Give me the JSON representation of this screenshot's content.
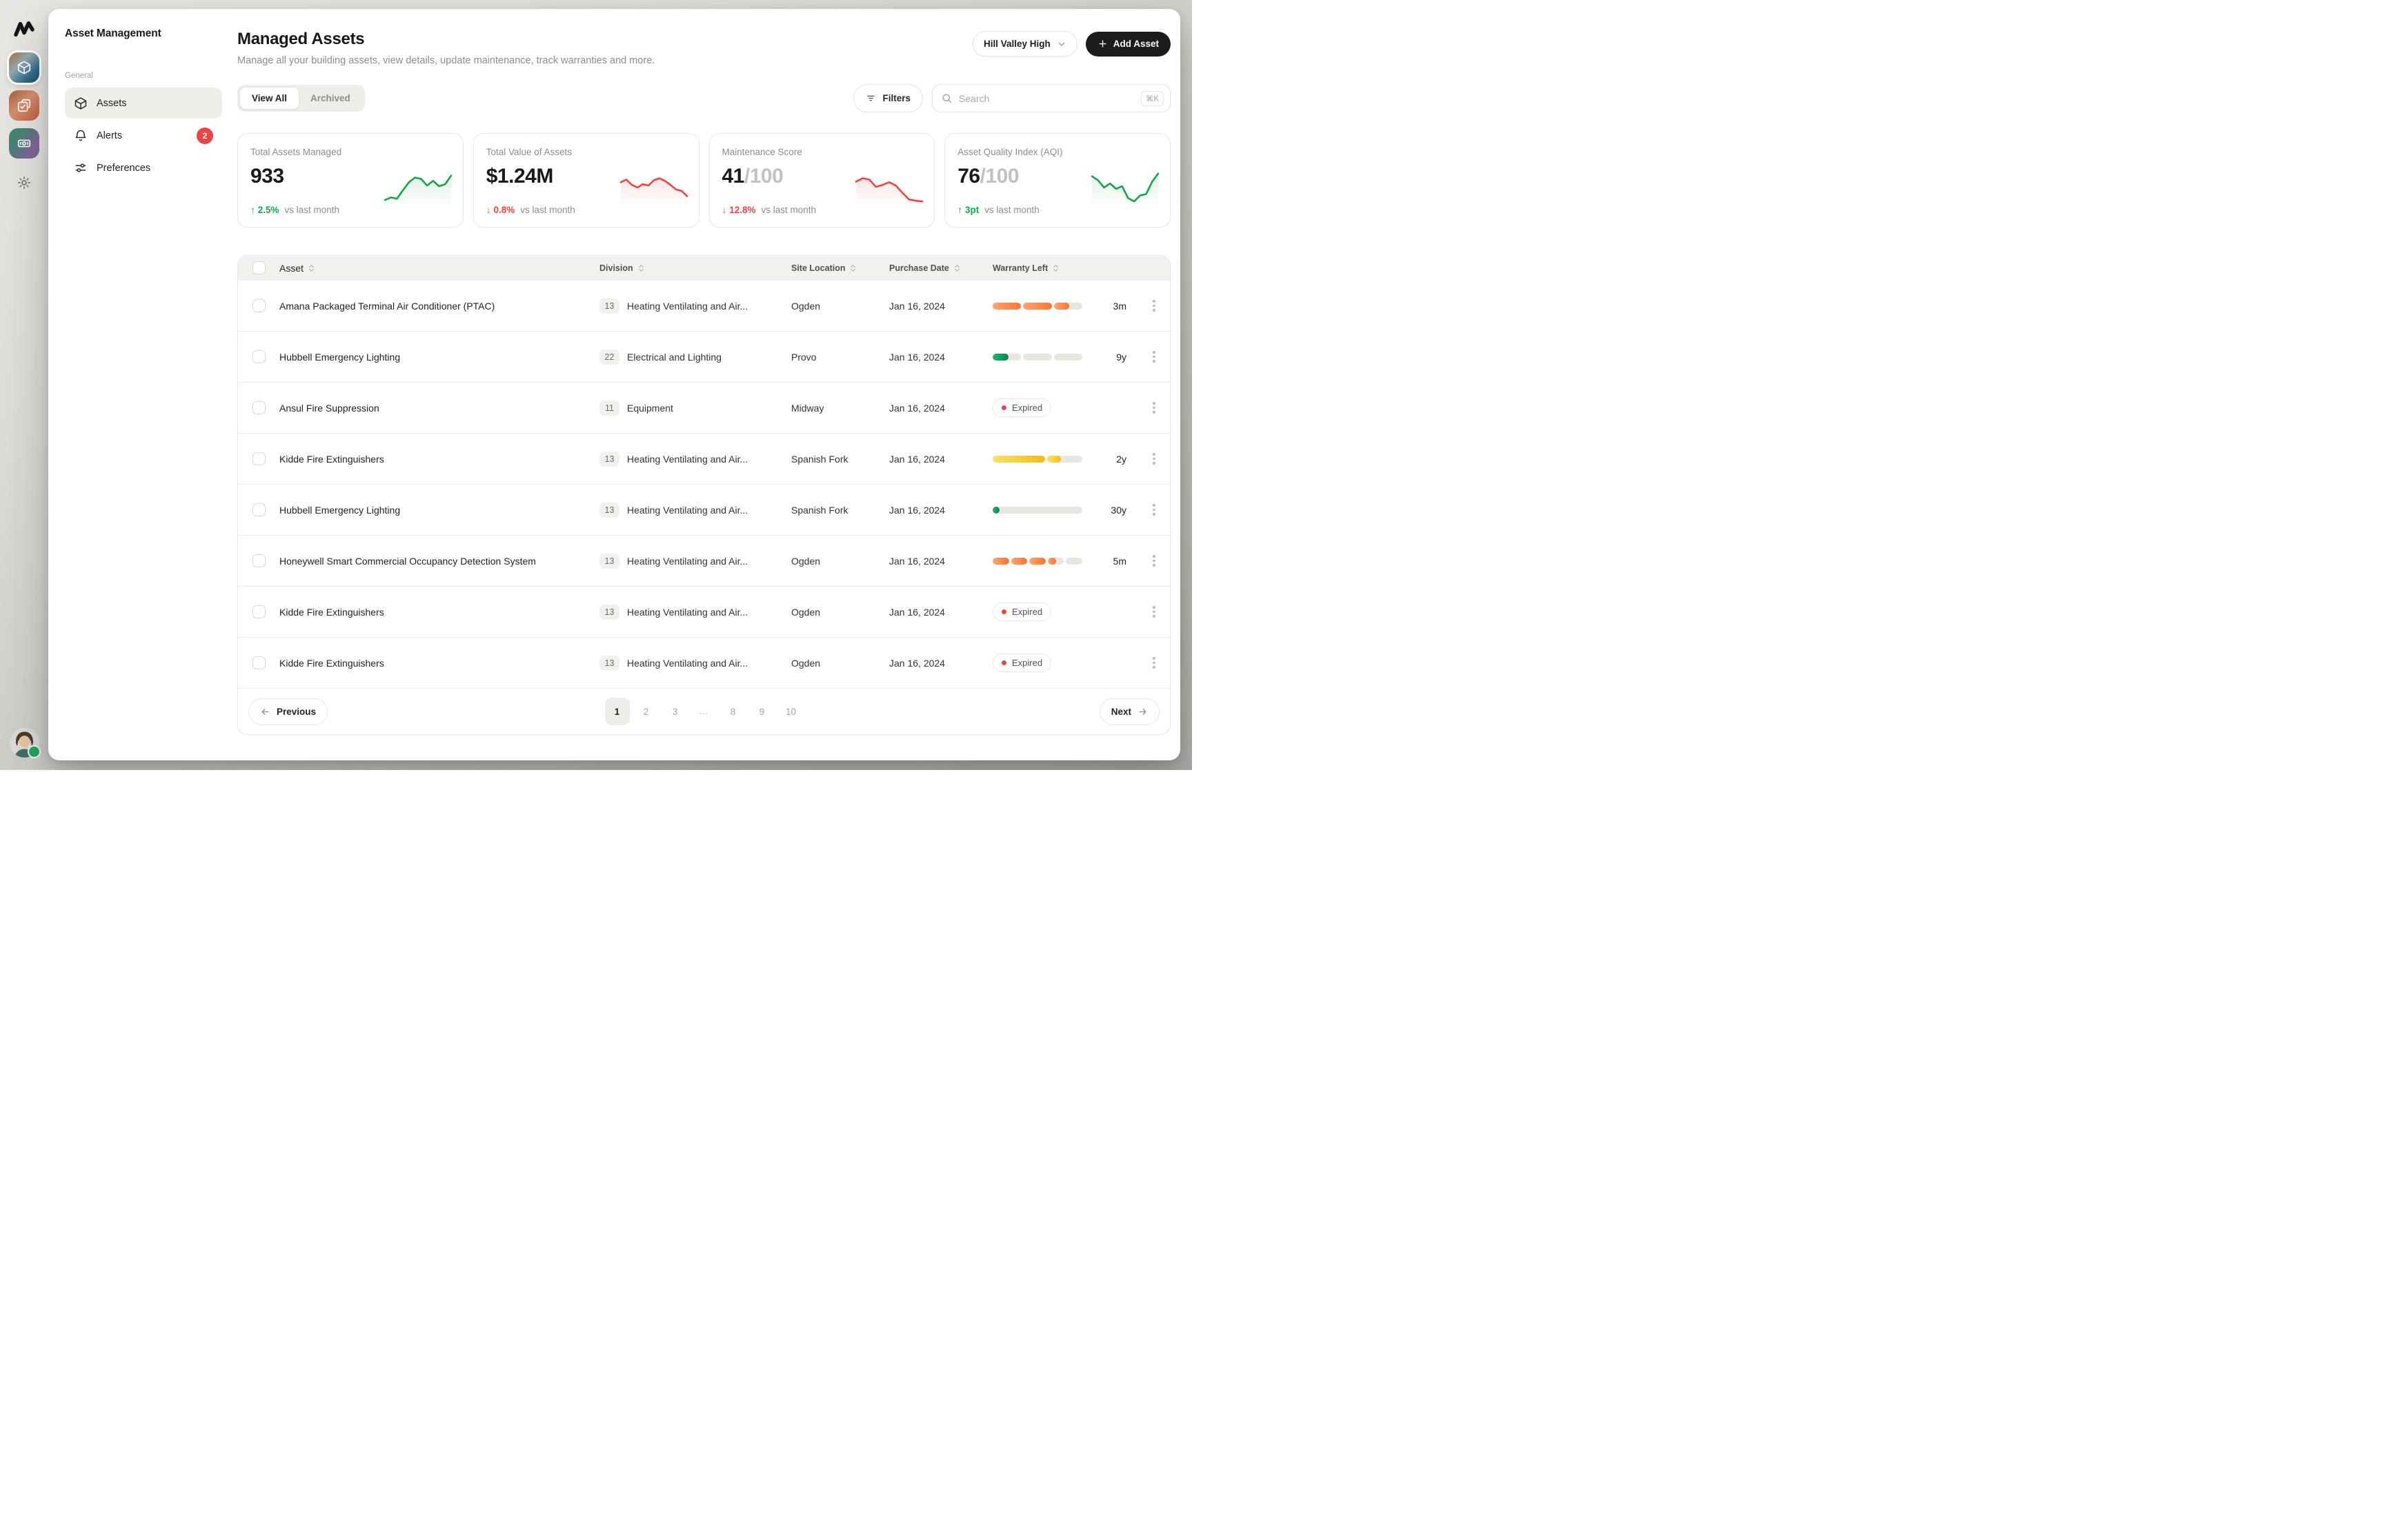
{
  "sidebar": {
    "title": "Asset Management",
    "section_label": "General",
    "nav": [
      {
        "label": "Assets",
        "badge": "",
        "active": true
      },
      {
        "label": "Alerts",
        "badge": "2",
        "active": false
      },
      {
        "label": "Preferences",
        "badge": "",
        "active": false
      }
    ]
  },
  "header": {
    "title": "Managed Assets",
    "subtitle": "Manage all your building assets, view details, update maintenance, track warranties and more.",
    "org_selector_label": "Hill Valley High",
    "add_asset_label": "Add Asset"
  },
  "toolbar": {
    "tabs": [
      {
        "label": "View All",
        "active": true
      },
      {
        "label": "Archived",
        "active": false
      }
    ],
    "filters_label": "Filters",
    "search_placeholder": "Search",
    "search_shortcut": "⌘K"
  },
  "stats": [
    {
      "title": "Total Assets Managed",
      "value": "933",
      "suffix": "",
      "delta": "2.5%",
      "direction": "up",
      "trend_color": "#16a34a",
      "caption": "vs last month",
      "spark": [
        12,
        20,
        16,
        42,
        66,
        80,
        76,
        56,
        70,
        54,
        60,
        86
      ]
    },
    {
      "title": "Total Value of Assets",
      "value": "$1.24M",
      "suffix": "",
      "delta": "0.8%",
      "direction": "down",
      "trend_color": "#ef4444",
      "caption": "vs last month",
      "spark": [
        66,
        74,
        58,
        50,
        60,
        56,
        72,
        78,
        70,
        58,
        44,
        40,
        24
      ]
    },
    {
      "title": "Maintenance Score",
      "value": "41",
      "suffix": "/100",
      "delta": "12.8%",
      "direction": "down",
      "trend_color": "#ef4444",
      "caption": "vs last month",
      "spark": [
        68,
        78,
        74,
        52,
        58,
        66,
        56,
        34,
        14,
        10,
        8
      ]
    },
    {
      "title": "Asset Quality Index (AQI)",
      "value": "76",
      "suffix": "/100",
      "delta": "3pt",
      "direction": "up",
      "trend_color": "#16a34a",
      "caption": "vs last month",
      "spark": [
        84,
        72,
        50,
        62,
        46,
        54,
        18,
        8,
        26,
        30,
        68,
        92
      ]
    }
  ],
  "table": {
    "columns": [
      "Asset",
      "Division",
      "Site Location",
      "Purchase Date",
      "Warranty Left"
    ],
    "rows": [
      {
        "asset": "Amana Packaged Terminal Air Conditioner (PTAC)",
        "division_code": "13",
        "division": "Heating Ventilating and Air...",
        "location": "Ogden",
        "date": "Jan 16, 2024",
        "warranty": {
          "type": "bar",
          "color": "orange",
          "label": "3m",
          "segments": [
            {
              "w": 1,
              "f": 1
            },
            {
              "w": 1,
              "f": 1
            },
            {
              "w": 1,
              "f": 0.55
            }
          ]
        }
      },
      {
        "asset": "Hubbell Emergency Lighting",
        "division_code": "22",
        "division": "Electrical and Lighting",
        "location": "Provo",
        "date": "Jan 16, 2024",
        "warranty": {
          "type": "bar",
          "color": "green",
          "label": "9y",
          "segments": [
            {
              "w": 1,
              "f": 0.55
            },
            {
              "w": 1,
              "f": 0
            },
            {
              "w": 1,
              "f": 0
            }
          ]
        }
      },
      {
        "asset": "Ansul Fire Suppression",
        "division_code": "11",
        "division": "Equipment",
        "location": "Midway",
        "date": "Jan 16, 2024",
        "warranty": {
          "type": "expired",
          "label": "Expired"
        }
      },
      {
        "asset": "Kidde Fire Extinguishers",
        "division_code": "13",
        "division": "Heating Ventilating and Air...",
        "location": "Spanish Fork",
        "date": "Jan 16, 2024",
        "warranty": {
          "type": "bar",
          "color": "yellow",
          "label": "2y",
          "segments": [
            {
              "w": 1.5,
              "f": 1
            },
            {
              "w": 1,
              "f": 0.38
            }
          ]
        }
      },
      {
        "asset": "Hubbell Emergency Lighting",
        "division_code": "13",
        "division": "Heating Ventilating and Air...",
        "location": "Spanish Fork",
        "date": "Jan 16, 2024",
        "warranty": {
          "type": "bar",
          "color": "green",
          "label": "30y",
          "segments": [
            {
              "w": 1,
              "f": 0.08
            }
          ]
        }
      },
      {
        "asset": "Honeywell Smart Commercial Occupancy Detection System",
        "division_code": "13",
        "division": "Heating Ventilating and Air...",
        "location": "Ogden",
        "date": "Jan 16, 2024",
        "warranty": {
          "type": "bar",
          "color": "orange",
          "label": "5m",
          "segments": [
            {
              "w": 1,
              "f": 1
            },
            {
              "w": 1,
              "f": 1
            },
            {
              "w": 1,
              "f": 1
            },
            {
              "w": 1,
              "f": 0.5
            },
            {
              "w": 1,
              "f": 0
            }
          ]
        }
      },
      {
        "asset": "Kidde Fire Extinguishers",
        "division_code": "13",
        "division": "Heating Ventilating and Air...",
        "location": "Ogden",
        "date": "Jan 16, 2024",
        "warranty": {
          "type": "expired",
          "label": "Expired"
        }
      },
      {
        "asset": "Kidde Fire Extinguishers",
        "division_code": "13",
        "division": "Heating Ventilating and Air...",
        "location": "Ogden",
        "date": "Jan 16, 2024",
        "warranty": {
          "type": "expired",
          "label": "Expired"
        }
      }
    ]
  },
  "pagination": {
    "previous_label": "Previous",
    "next_label": "Next",
    "pages": [
      "1",
      "2",
      "3",
      "...",
      "8",
      "9",
      "10"
    ],
    "active_page": "1"
  }
}
